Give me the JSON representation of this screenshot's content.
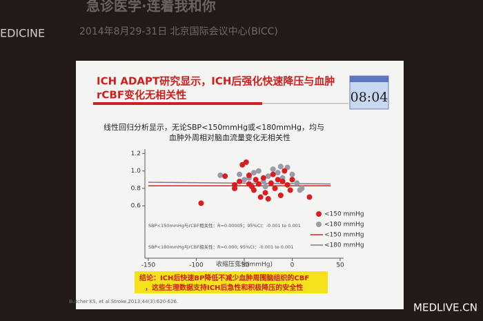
{
  "banner": {
    "headline": "急诊医学·连着我和你",
    "brand": "EDICINE",
    "date_venue": "2014年8月29-31日    北京国际会议中心(BICC)"
  },
  "slide": {
    "title_lines": [
      "ICH ADAPT研究显示，ICH后强化快速降压与血肿",
      "rCBF变化无相关性"
    ],
    "timer": "08:04",
    "subtitle_lines": [
      "线性回归分析显示，无论SBP<150mmHg或<180mmHg，均与",
      "血肿外周相对脑血流量变化无相关性"
    ],
    "conclusion_lines": [
      "结论：ICH后快速BP降低不减少血肿周围脑组织的CBF",
      "，这些生理数据支持ICH后急性和积极降压的安全性"
    ],
    "citation": "Butcher KS, et al.Stroke.2013;44(3):620-626."
  },
  "watermark": "MEDLIVE.CN",
  "chart_data": {
    "type": "scatter",
    "xlabel": "收缩压变化(mmHg)",
    "xlim": [
      -150,
      50
    ],
    "ylim": [
      0,
      1.25
    ],
    "xticks": [
      -150,
      -100,
      -50,
      0,
      50
    ],
    "yticks": [
      0.6,
      0.8,
      {
        "value": 1,
        "label": "1.0"
      },
      1.2
    ],
    "series": [
      {
        "name": "<150 mmHg",
        "color": "#d81e1e",
        "x": [
          -95,
          -70,
          -60,
          -55,
          -52,
          -48,
          -45,
          -42,
          -40,
          -38,
          -35,
          -30,
          -28,
          -25,
          -22,
          -20,
          -18,
          -15,
          -12,
          -10,
          -8,
          -5,
          -2,
          0,
          -33,
          18,
          -60,
          -45
        ],
        "values": [
          0.63,
          0.94,
          0.84,
          0.88,
          1.07,
          1.1,
          0.95,
          0.82,
          0.78,
          0.9,
          0.85,
          0.92,
          0.75,
          0.68,
          0.86,
          0.96,
          0.8,
          0.9,
          0.72,
          0.88,
          1.0,
          0.84,
          0.78,
          0.9,
          0.7,
          0.7,
          0.8,
          0.85
        ]
      },
      {
        "name": "<180 mmHg",
        "color": "#9a9aa8",
        "x": [
          -75,
          -55,
          -50,
          -45,
          -40,
          -35,
          -30,
          -25,
          -20,
          -15,
          -10,
          -5,
          0,
          5,
          8,
          10,
          -28,
          -12
        ],
        "values": [
          0.95,
          0.96,
          0.9,
          0.92,
          0.98,
          1.0,
          0.88,
          0.94,
          1.02,
          0.98,
          0.92,
          1.04,
          0.96,
          0.86,
          0.78,
          0.8,
          0.82,
          1.05
        ]
      }
    ],
    "lines": [
      {
        "name": "<150 mmHg",
        "color": "#d81e1e",
        "x": [
          -150,
          40
        ],
        "values": [
          0.83,
          0.83
        ]
      },
      {
        "name": "<180 mmHg",
        "color": "#7a7a90",
        "x": [
          -150,
          40
        ],
        "values": [
          0.87,
          0.85
        ]
      }
    ],
    "annotations": [
      "SBP<150mmHg与rCBF相关性：R=0.00005；95%CI：-0.001 to 0.001",
      "SBP<180mmHg与rCBF相关性：R=0.000; 95%CI：-0.001 to 0.001"
    ]
  }
}
